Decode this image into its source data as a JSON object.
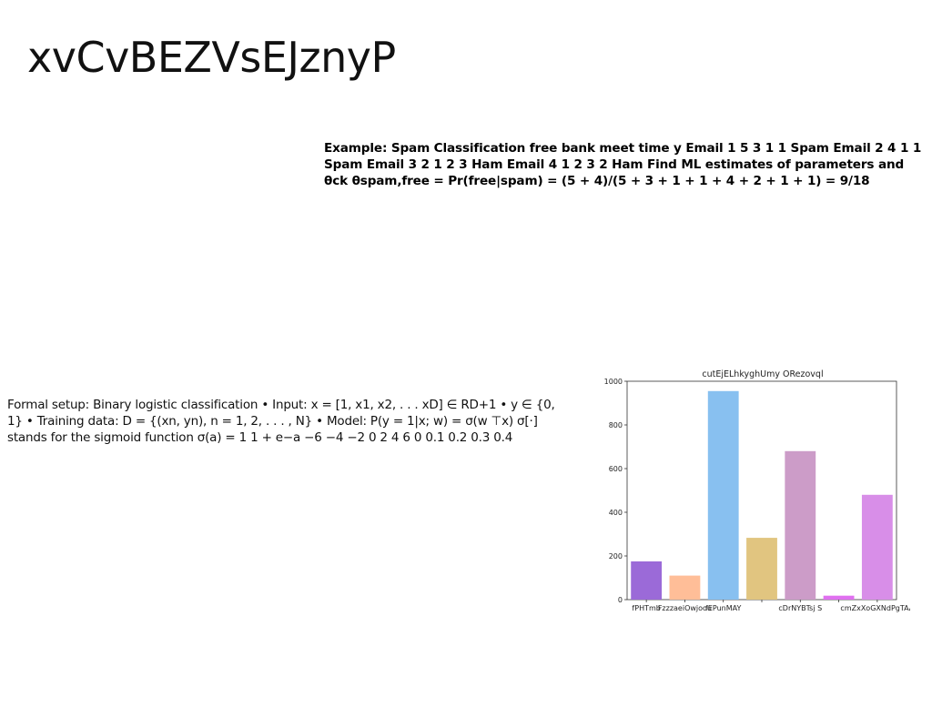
{
  "slide": {
    "title": "xvCvBEZVsEJznyP"
  },
  "example_text": "Example: Spam Classification free bank meet time y Email 1 5 3 1 1 Spam Email 2 4 1 1 Spam Email 3 2 1 2 3 Ham Email 4 1 2 3 2 Ham Find ML estimates of parameters and θck θspam,free = Pr(free|spam) = (5 + 4)/(5 + 3 + 1 + 1 + 4 + 2 + 1 + 1) = 9/18",
  "formal_text": "Formal setup: Binary logistic classification • Input: x = [1, x1, x2, . . . xD] ∈ RD+1 • y ∈ {0, 1} • Training data: D = {(xn, yn), n = 1, 2, . . . , N} • Model: P(y = 1|x; w) = σ(w ⊤x) σ[·] stands for the sigmoid function σ(a) = 1 1 + e−a −6 −4 −2 0 2 4 6 0 0.1 0.2 0.3 0.4",
  "chart_data": {
    "type": "bar",
    "title": "cutEjELhkyghUmy ORezovql",
    "xlabel": "",
    "ylabel": "",
    "categories": [
      "fPHTmb",
      "FzzzaeiOwjoou",
      "fEPunMAY",
      "cDrNYBTsj S",
      "cmZxXoGXNdPgTAA"
    ],
    "bars": [
      {
        "label": "fPHTmb",
        "value": 175,
        "color": "#9b6ad8"
      },
      {
        "label": "FzzzaeiOwjoou",
        "value": 110,
        "color": "#ffbe98"
      },
      {
        "label": "fEPunMAY",
        "value": 955,
        "color": "#88c0f0"
      },
      {
        "label": "",
        "value": 283,
        "color": "#e1c580"
      },
      {
        "label": "cDrNYBTsj S",
        "value": 680,
        "color": "#cc9cc8"
      },
      {
        "label": "",
        "value": 18,
        "color": "#e070f0"
      },
      {
        "label": "cmZxXoGXNdPgTAA",
        "value": 480,
        "color": "#d88ee8"
      }
    ],
    "yticks": [
      0,
      200,
      400,
      600,
      800,
      1000
    ],
    "ylim": [
      0,
      1000
    ],
    "grid": false
  }
}
